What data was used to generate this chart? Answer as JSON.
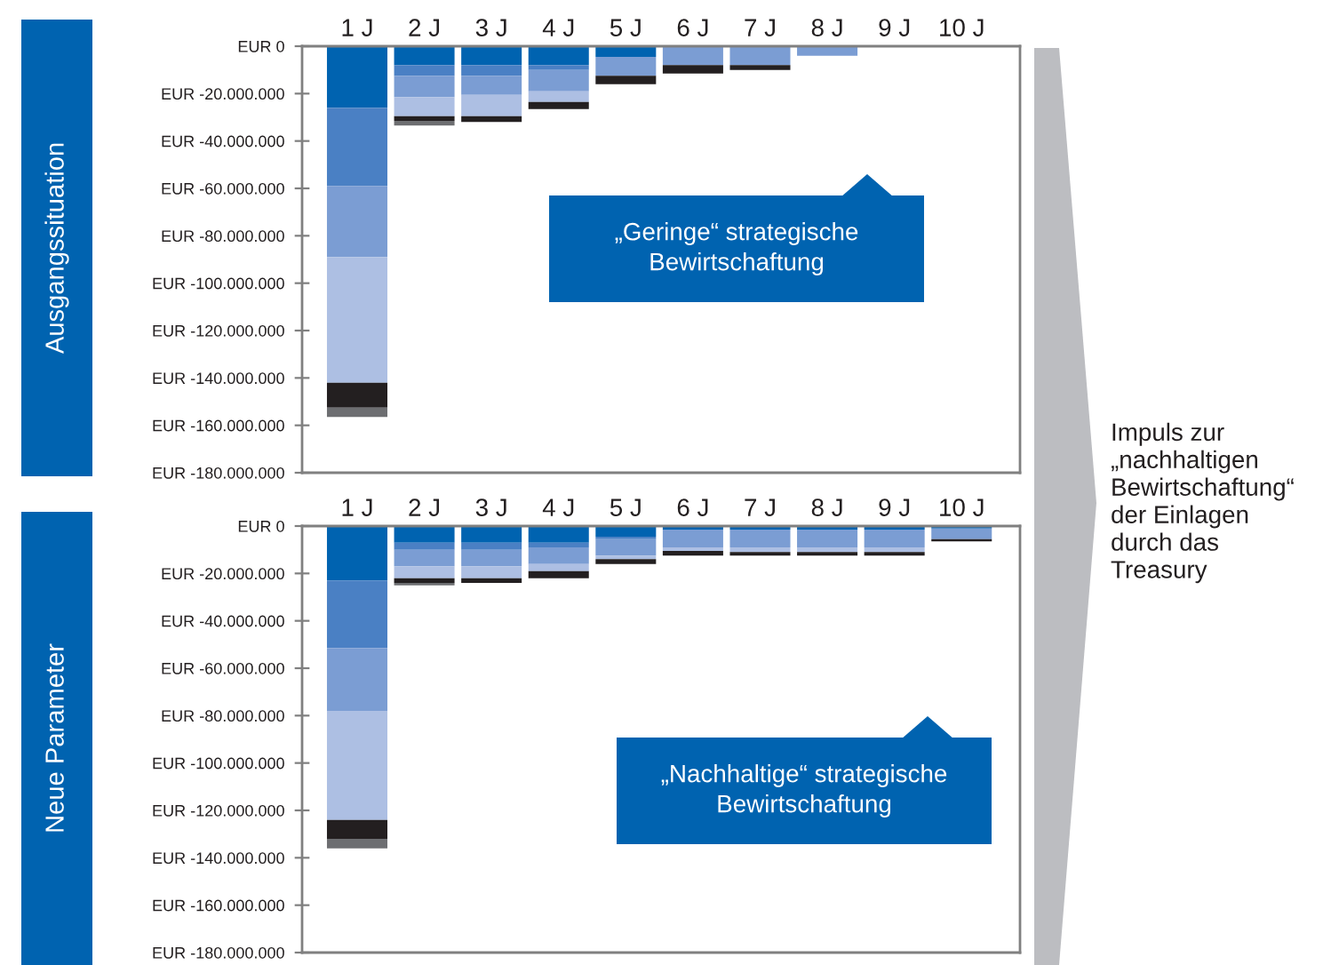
{
  "chart_data": [
    {
      "type": "bar",
      "stacked": true,
      "title": "Ausgangssituation",
      "categories": [
        "1 J",
        "2 J",
        "3 J",
        "4 J",
        "5 J",
        "6 J",
        "7 J",
        "8 J",
        "9 J",
        "10 J"
      ],
      "series": [
        {
          "color": "#0063b0",
          "values": [
            -26000000,
            -8000000,
            -8000000,
            -8000000,
            -4500000,
            0,
            0,
            0,
            0,
            0
          ]
        },
        {
          "color": "#4a80c4",
          "values": [
            -33000000,
            -4500000,
            -4500000,
            -2000000,
            0,
            0,
            0,
            0,
            0,
            0
          ]
        },
        {
          "color": "#7b9dd3",
          "values": [
            -30000000,
            -9000000,
            -8000000,
            -9000000,
            -8000000,
            -8000000,
            -8000000,
            -4000000,
            0,
            0
          ]
        },
        {
          "color": "#adbfe3",
          "values": [
            -53000000,
            -8000000,
            -9000000,
            -4500000,
            0,
            0,
            0,
            0,
            0,
            0
          ]
        },
        {
          "color": "#231f20",
          "values": [
            -10500000,
            -2000000,
            -2500000,
            -3000000,
            -3500000,
            -3500000,
            -2000000,
            0,
            0,
            0
          ]
        },
        {
          "color": "#6d6e71",
          "values": [
            -4000000,
            -2000000,
            0,
            0,
            0,
            0,
            0,
            0,
            0,
            0
          ]
        }
      ],
      "ylim": [
        -180000000,
        0
      ],
      "yticks": [
        {
          "value": 0,
          "label": "EUR 0"
        },
        {
          "value": -20000000,
          "label": "EUR -20.000.000"
        },
        {
          "value": -40000000,
          "label": "EUR -40.000.000"
        },
        {
          "value": -60000000,
          "label": "EUR -60.000.000"
        },
        {
          "value": -80000000,
          "label": "EUR -80.000.000"
        },
        {
          "value": -100000000,
          "label": "EUR -100.000.000"
        },
        {
          "value": -120000000,
          "label": "EUR -120.000.000"
        },
        {
          "value": -140000000,
          "label": "EUR -140.000.000"
        },
        {
          "value": -160000000,
          "label": "EUR -160.000.000"
        },
        {
          "value": -180000000,
          "label": "EUR -180.000.000"
        }
      ],
      "grid": false,
      "legend": false,
      "annotations": [
        "„Geringe“ strategische\nBewirtschaftung"
      ]
    },
    {
      "type": "bar",
      "stacked": true,
      "title": "Neue Parameter",
      "categories": [
        "1 J",
        "2 J",
        "3 J",
        "4 J",
        "5 J",
        "6 J",
        "7 J",
        "8 J",
        "9 J",
        "10 J"
      ],
      "series": [
        {
          "color": "#0063b0",
          "values": [
            -23000000,
            -7000000,
            -7000000,
            -7000000,
            -4500000,
            -1500000,
            -1500000,
            -1500000,
            -1500000,
            -1000000
          ]
        },
        {
          "color": "#4a80c4",
          "values": [
            -28500000,
            -3000000,
            -3000000,
            -2000000,
            -1000000,
            0,
            0,
            0,
            0,
            0
          ]
        },
        {
          "color": "#7b9dd3",
          "values": [
            -26500000,
            -7000000,
            -7000000,
            -7000000,
            -7000000,
            -7500000,
            -7500000,
            -7500000,
            -7500000,
            -4500000
          ]
        },
        {
          "color": "#adbfe3",
          "values": [
            -46000000,
            -5000000,
            -5000000,
            -3000000,
            -1500000,
            -1500000,
            -2000000,
            -2000000,
            -2000000,
            0
          ]
        },
        {
          "color": "#231f20",
          "values": [
            -8000000,
            -2000000,
            -2000000,
            -3000000,
            -2000000,
            -2000000,
            -1500000,
            -1500000,
            -1500000,
            -1000000
          ]
        },
        {
          "color": "#6d6e71",
          "values": [
            -4000000,
            -1000000,
            0,
            0,
            0,
            0,
            0,
            0,
            0,
            0
          ]
        }
      ],
      "ylim": [
        -180000000,
        0
      ],
      "yticks": [
        {
          "value": 0,
          "label": "EUR 0"
        },
        {
          "value": -20000000,
          "label": "EUR -20.000.000"
        },
        {
          "value": -40000000,
          "label": "EUR -40.000.000"
        },
        {
          "value": -60000000,
          "label": "EUR -60.000.000"
        },
        {
          "value": -80000000,
          "label": "EUR -80.000.000"
        },
        {
          "value": -100000000,
          "label": "EUR -100.000.000"
        },
        {
          "value": -120000000,
          "label": "EUR -120.000.000"
        },
        {
          "value": -140000000,
          "label": "EUR -140.000.000"
        },
        {
          "value": -160000000,
          "label": "EUR -160.000.000"
        },
        {
          "value": -180000000,
          "label": "EUR -180.000.000"
        }
      ],
      "grid": false,
      "legend": false,
      "annotations": [
        "„Nachhaltige“ strategische\nBewirtschaftung"
      ]
    },
    {
      "type": "other",
      "annotations": [
        "Impuls zur\n„nachhaltigen\nBewirtschaftung“\nder Einlagen\ndurch das\nTreasury"
      ]
    }
  ]
}
